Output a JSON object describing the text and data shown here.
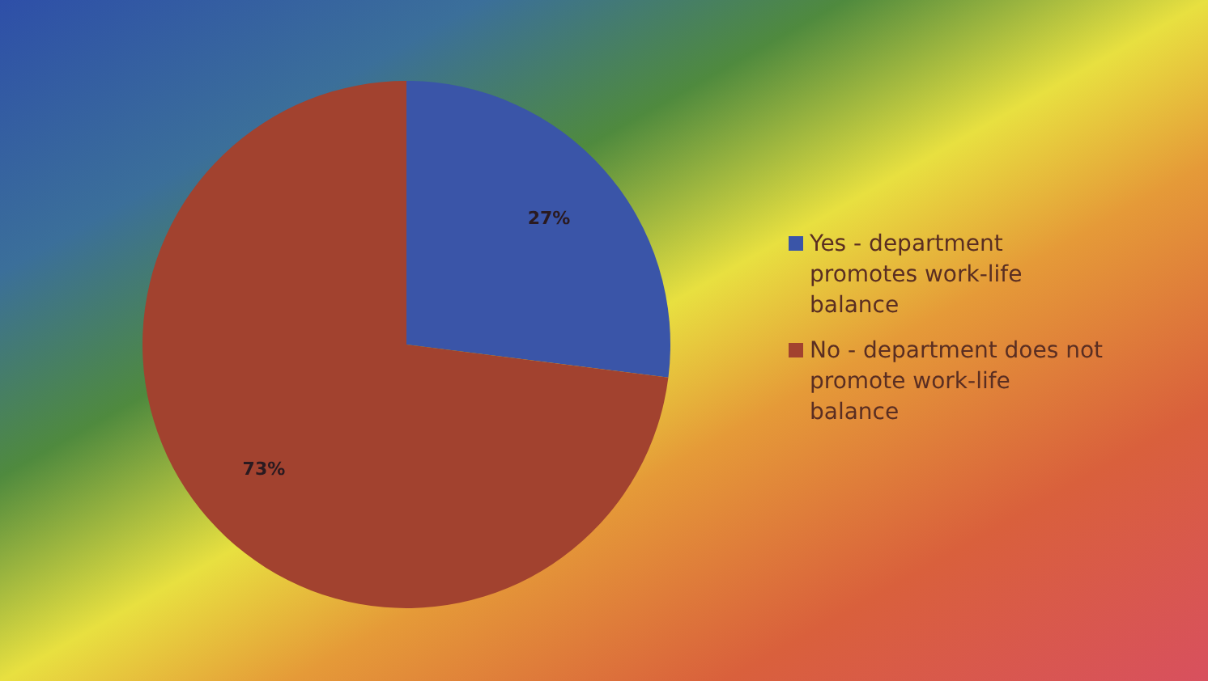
{
  "chart_data": {
    "type": "pie",
    "categories": [
      "Yes - department promotes work-life balance",
      "No - department does not promote work-life balance"
    ],
    "values": [
      27,
      73
    ],
    "colors": [
      "#3a55a8",
      "#a2422f"
    ],
    "value_labels": [
      "27%",
      "73%"
    ],
    "legend": "right"
  }
}
